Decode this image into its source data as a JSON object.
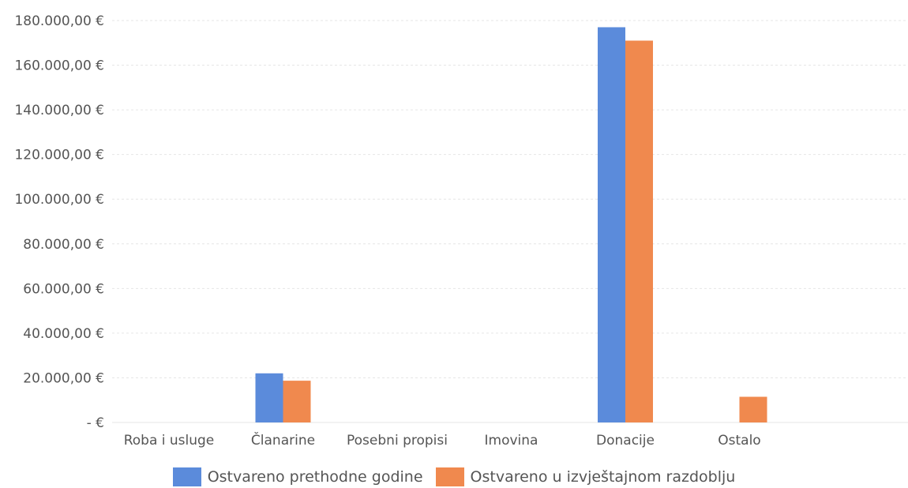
{
  "chart_data": {
    "type": "bar",
    "categories": [
      "Roba i usluge",
      "Članarine",
      "Posebni propisi",
      "Imovina",
      "Donacije",
      "Ostalo"
    ],
    "series": [
      {
        "name": "Ostvareno prethodne godine",
        "color": "#5B8BDB",
        "values": [
          0,
          22000,
          0,
          0,
          177000,
          0
        ]
      },
      {
        "name": "Ostvareno u izvještajnom razdoblju",
        "color": "#F0894E",
        "values": [
          0,
          18700,
          0,
          0,
          171000,
          11500
        ]
      }
    ],
    "y_ticks": [
      "-  €",
      "20.000,00 €",
      "40.000,00 €",
      "60.000,00 €",
      "80.000,00 €",
      "100.000,00 €",
      "120.000,00 €",
      "140.000,00 €",
      "160.000,00 €",
      "180.000,00 €"
    ],
    "ylim": [
      0,
      180000
    ],
    "grid": true,
    "legend_position": "bottom"
  }
}
